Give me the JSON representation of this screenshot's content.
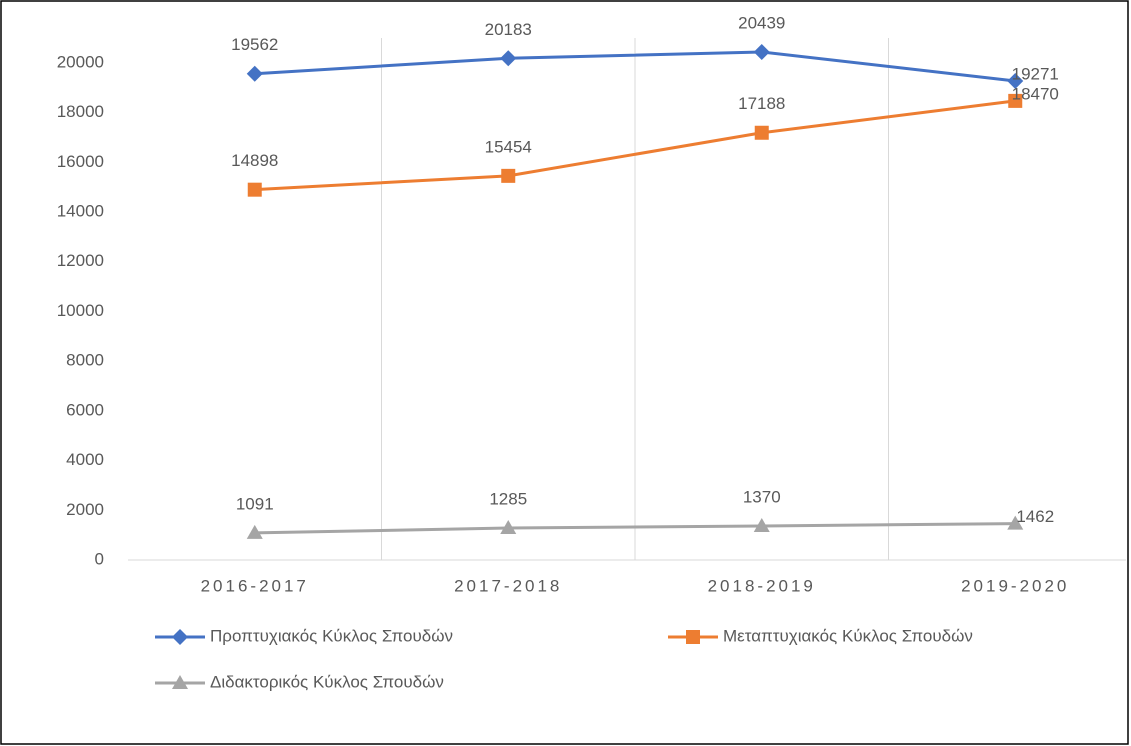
{
  "chart_data": {
    "type": "line",
    "categories": [
      "2016-2017",
      "2017-2018",
      "2018-2019",
      "2019-2020"
    ],
    "series": [
      {
        "name": "Προπτυχιακός Κύκλος Σπουδών",
        "color": "#4472c4",
        "marker": "diamond",
        "values": [
          19562,
          20183,
          20439,
          19271
        ]
      },
      {
        "name": "Μεταπτυχιακός Κύκλος Σπουδών",
        "color": "#ed7d31",
        "marker": "square",
        "values": [
          14898,
          15454,
          17188,
          18470
        ]
      },
      {
        "name": "Διδακτορικός Κύκλος Σπουδών",
        "color": "#a5a5a5",
        "marker": "triangle",
        "values": [
          1091,
          1285,
          1370,
          1462
        ]
      }
    ],
    "ylim": [
      0,
      21000
    ],
    "yticks": [
      0,
      2000,
      4000,
      6000,
      8000,
      10000,
      12000,
      14000,
      16000,
      18000,
      20000
    ],
    "grid": "x",
    "legend": "bottom"
  }
}
